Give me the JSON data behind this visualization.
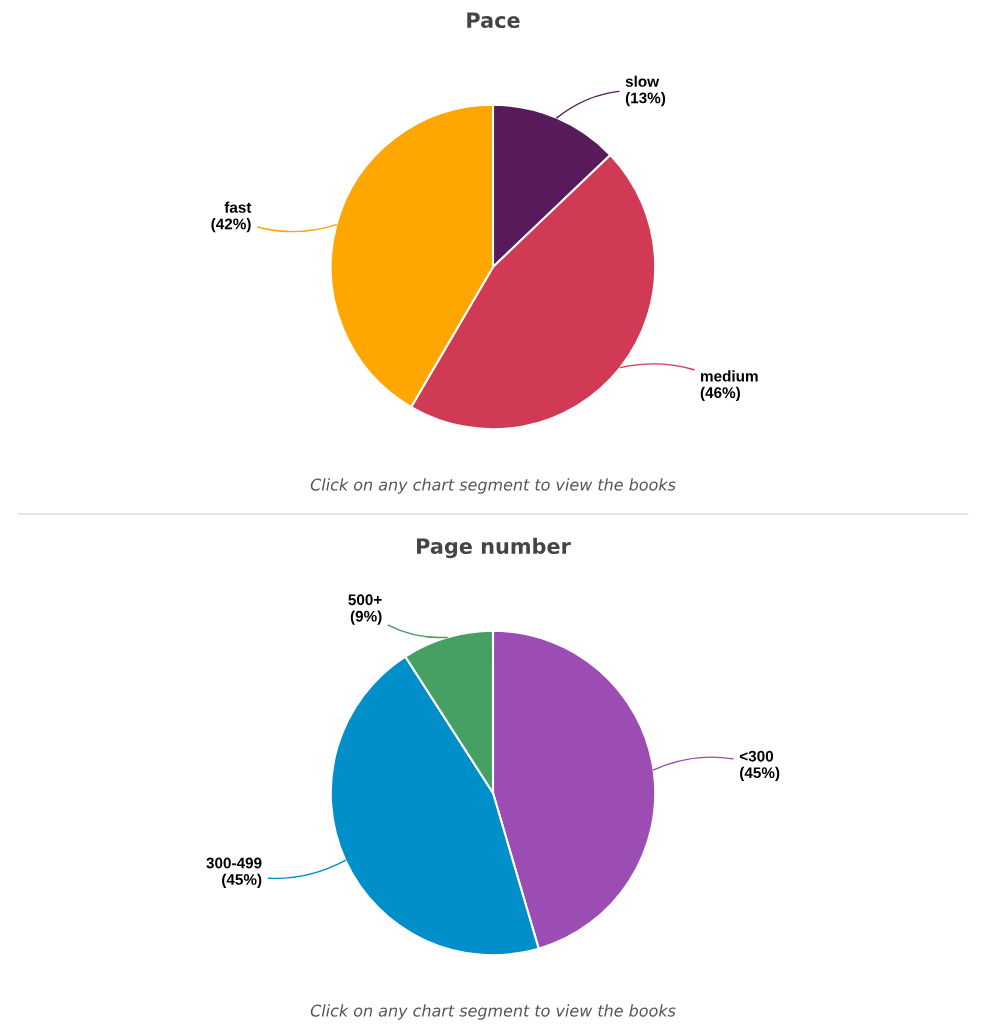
{
  "chart_data": [
    {
      "type": "pie",
      "title": "Pace",
      "categories": [
        "slow",
        "medium",
        "fast"
      ],
      "values": [
        13,
        46,
        42
      ],
      "colors": [
        "#581a5b",
        "#d13a54",
        "#ffa600"
      ],
      "value_labels": [
        "(13%)",
        "(46%)",
        "(42%)"
      ],
      "annotations": [
        "Click on any chart segment to view the books"
      ],
      "legend": false
    },
    {
      "type": "pie",
      "title": "Page number",
      "categories": [
        "<300",
        "300-499",
        "500+"
      ],
      "values": [
        45,
        45,
        9
      ],
      "colors": [
        "#9b4db4",
        "#008fc9",
        "#47a063"
      ],
      "value_labels": [
        "(45%)",
        "(45%)",
        "(9%)"
      ],
      "annotations": [
        "Click on any chart segment to view the books"
      ],
      "legend": false
    }
  ]
}
